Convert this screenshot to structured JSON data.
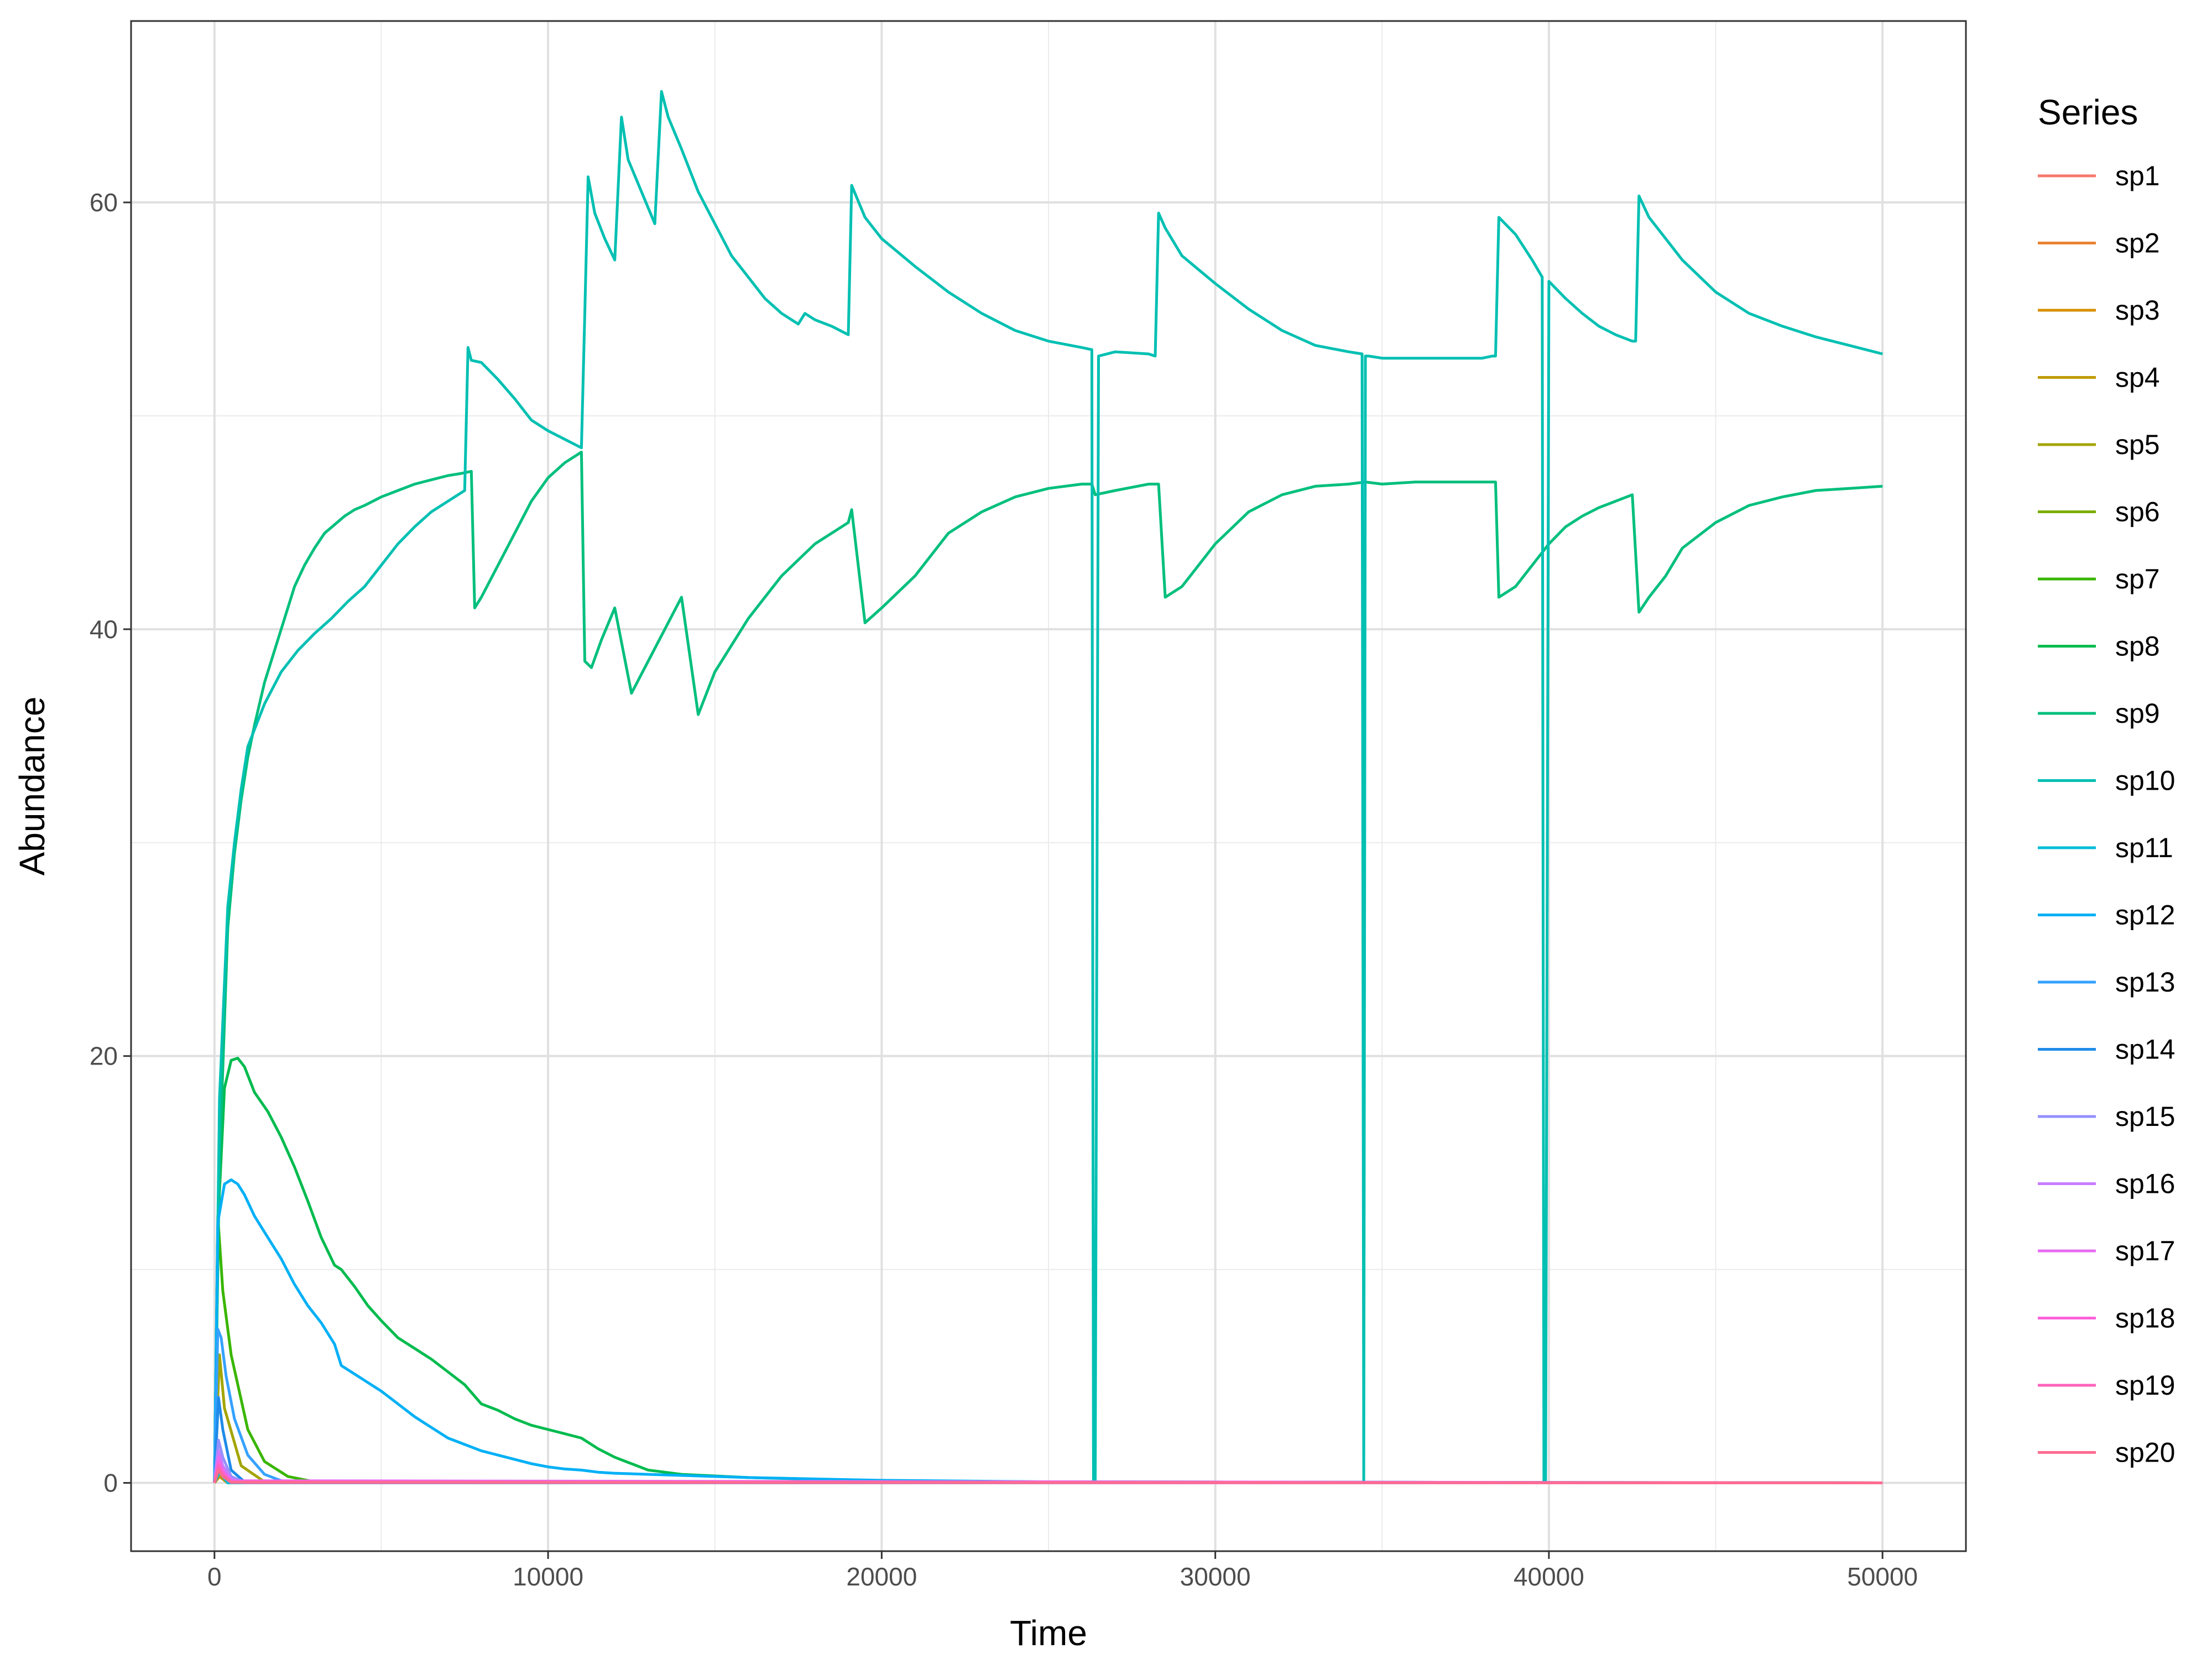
{
  "chart_data": {
    "type": "line",
    "xlabel": "Time",
    "ylabel": "Abundance",
    "xlim": [
      -2500,
      52500
    ],
    "ylim": [
      -3.2,
      68.5
    ],
    "x_ticks": [
      0,
      10000,
      20000,
      30000,
      40000,
      50000
    ],
    "x_tick_labels": [
      "0",
      "10000",
      "20000",
      "30000",
      "40000",
      "50000"
    ],
    "y_ticks": [
      0,
      20,
      40,
      60
    ],
    "y_tick_labels": [
      "0",
      "20",
      "40",
      "60"
    ],
    "grid": true,
    "legend": {
      "title": "Series",
      "position": "right"
    },
    "series": [
      {
        "name": "sp1",
        "color": "#F8766D",
        "x": [
          0,
          150,
          400,
          50000
        ],
        "y": [
          0,
          0.4,
          0,
          0
        ]
      },
      {
        "name": "sp2",
        "color": "#EA8331",
        "x": [
          0,
          150,
          400,
          50000
        ],
        "y": [
          0,
          0.3,
          0,
          0
        ]
      },
      {
        "name": "sp3",
        "color": "#D89000",
        "x": [
          0,
          150,
          400,
          50000
        ],
        "y": [
          0,
          0.3,
          0,
          0
        ]
      },
      {
        "name": "sp4",
        "color": "#C09B00",
        "x": [
          0,
          150,
          400,
          50000
        ],
        "y": [
          0,
          0.3,
          0,
          0
        ]
      },
      {
        "name": "sp5",
        "color": "#A3A500",
        "x": [
          0,
          150,
          300,
          800,
          1500,
          50000
        ],
        "y": [
          0,
          6,
          3.5,
          0.8,
          0.05,
          0
        ]
      },
      {
        "name": "sp6",
        "color": "#7CAE00",
        "x": [
          0,
          150,
          400,
          50000
        ],
        "y": [
          0,
          0.5,
          0,
          0
        ]
      },
      {
        "name": "sp7",
        "color": "#39B600",
        "x": [
          0,
          100,
          250,
          500,
          1000,
          1500,
          2200,
          3000,
          50000
        ],
        "y": [
          0,
          12.5,
          9,
          6,
          2.5,
          1,
          0.3,
          0.05,
          0
        ]
      },
      {
        "name": "sp8",
        "color": "#00BB4E",
        "x": [
          0,
          100,
          300,
          500,
          700,
          900,
          1200,
          1600,
          2000,
          2400,
          2800,
          3200,
          3600,
          3800,
          4200,
          4600,
          5000,
          5500,
          6000,
          6500,
          7000,
          7500,
          8000,
          8500,
          9000,
          9500,
          10000,
          10500,
          11000,
          11500,
          12000,
          12500,
          13000,
          14000,
          16000,
          20000,
          25000,
          50000
        ],
        "y": [
          0,
          12,
          18.5,
          19.8,
          19.9,
          19.5,
          18.3,
          17.4,
          16.2,
          14.8,
          13.2,
          11.5,
          10.2,
          10,
          9.2,
          8.3,
          7.6,
          6.8,
          6.3,
          5.8,
          5.2,
          4.6,
          3.7,
          3.4,
          3.0,
          2.7,
          2.5,
          2.3,
          2.1,
          1.6,
          1.2,
          0.9,
          0.6,
          0.4,
          0.25,
          0.1,
          0.05,
          0
        ]
      },
      {
        "name": "sp9",
        "color": "#00BF7D",
        "x": [
          0,
          150,
          400,
          600,
          800,
          1000,
          1200,
          1500,
          1800,
          2100,
          2400,
          2700,
          3000,
          3300,
          3600,
          3900,
          4200,
          4500,
          5000,
          5500,
          6000,
          6500,
          7000,
          7400,
          7700,
          7800,
          8000,
          8500,
          9000,
          9500,
          10000,
          10500,
          11000,
          11100,
          11300,
          11600,
          12000,
          12500,
          13000,
          13500,
          14000,
          14500,
          15000,
          16000,
          17000,
          18000,
          19000,
          19100,
          19500,
          20000,
          21000,
          22000,
          23000,
          24000,
          25000,
          26000,
          26300,
          26400,
          27000,
          28000,
          28300,
          28500,
          29000,
          30000,
          31000,
          32000,
          33000,
          34000,
          34500,
          35000,
          36000,
          37000,
          38000,
          38400,
          38500,
          39000,
          39500,
          40000,
          40500,
          41000,
          41500,
          42000,
          42500,
          42700,
          43000,
          43500,
          44000,
          45000,
          46000,
          47000,
          48000,
          49000,
          50000
        ],
        "y": [
          0,
          15,
          26,
          29.5,
          32,
          34,
          35.5,
          37.5,
          39,
          40.5,
          42,
          43,
          43.8,
          44.5,
          44.9,
          45.3,
          45.6,
          45.8,
          46.2,
          46.5,
          46.8,
          47.0,
          47.2,
          47.3,
          47.4,
          41.0,
          41.5,
          43,
          44.5,
          46,
          47.1,
          47.8,
          48.3,
          38.5,
          38.2,
          39.5,
          41,
          37,
          38.5,
          40,
          41.5,
          36,
          38,
          40.5,
          42.5,
          44,
          45,
          45.6,
          40.3,
          41,
          42.5,
          44.5,
          45.5,
          46.2,
          46.6,
          46.8,
          46.8,
          46.3,
          46.5,
          46.8,
          46.8,
          41.5,
          42,
          44,
          45.5,
          46.3,
          46.7,
          46.8,
          46.9,
          46.8,
          46.9,
          46.9,
          46.9,
          46.9,
          41.5,
          42,
          43,
          44,
          44.8,
          45.3,
          45.7,
          46,
          46.3,
          40.8,
          41.5,
          42.5,
          43.8,
          45,
          45.8,
          46.2,
          46.5,
          46.6,
          46.7
        ]
      },
      {
        "name": "sp10",
        "color": "#00C0B2",
        "x": [
          0,
          150,
          400,
          600,
          800,
          1000,
          1500,
          2000,
          2500,
          3000,
          3500,
          4000,
          4500,
          5000,
          5500,
          6000,
          6500,
          7000,
          7500,
          7600,
          7700,
          8000,
          8500,
          9000,
          9500,
          10000,
          10500,
          11000,
          11100,
          11200,
          11400,
          11700,
          12000,
          12200,
          12400,
          12800,
          13200,
          13400,
          13600,
          14000,
          14500,
          15000,
          15500,
          16000,
          16500,
          17000,
          17500,
          17700,
          18000,
          18500,
          19000,
          19100,
          19500,
          20000,
          21000,
          22000,
          23000,
          24000,
          25000,
          26000,
          26300,
          26350,
          26400,
          26500,
          27000,
          28000,
          28200,
          28300,
          28500,
          29000,
          30000,
          31000,
          32000,
          33000,
          34000,
          34400,
          34450,
          34500,
          34600,
          35000,
          36000,
          37000,
          38000,
          38300,
          38400,
          38500,
          39000,
          39500,
          39800,
          39850,
          39900,
          40000,
          40500,
          41000,
          41500,
          42000,
          42500,
          42600,
          42700,
          43000,
          43500,
          44000,
          45000,
          46000,
          47000,
          48000,
          49000,
          50000
        ],
        "y": [
          0,
          18,
          27,
          30,
          32.5,
          34.5,
          36.5,
          38,
          39,
          39.8,
          40.5,
          41.3,
          42,
          43,
          44,
          44.8,
          45.5,
          46,
          46.5,
          53.2,
          52.6,
          52.5,
          51.7,
          50.8,
          49.8,
          49.3,
          48.9,
          48.5,
          54.8,
          61.2,
          59.5,
          58.3,
          57.3,
          64.0,
          62,
          60.5,
          59,
          65.2,
          64,
          62.5,
          60.5,
          59,
          57.5,
          56.5,
          55.5,
          54.8,
          54.3,
          54.8,
          54.5,
          54.2,
          53.8,
          60.8,
          59.3,
          58.3,
          57,
          55.8,
          54.8,
          54,
          53.5,
          53.2,
          53.1,
          0,
          0,
          52.8,
          53,
          52.9,
          52.8,
          59.5,
          58.8,
          57.5,
          56.2,
          55,
          54,
          53.3,
          53,
          52.9,
          0,
          52.8,
          52.8,
          52.7,
          52.7,
          52.7,
          52.7,
          52.8,
          52.8,
          59.3,
          58.5,
          57.3,
          56.5,
          0,
          0,
          56.3,
          55.5,
          54.8,
          54.2,
          53.8,
          53.5,
          53.5,
          60.3,
          59.3,
          58.3,
          57.3,
          55.8,
          54.8,
          54.2,
          53.7,
          53.3,
          52.9
        ]
      },
      {
        "name": "sp11",
        "color": "#00BCD8",
        "x": [
          0,
          150,
          400,
          50000
        ],
        "y": [
          0,
          0.5,
          0,
          0
        ]
      },
      {
        "name": "sp12",
        "color": "#00B0F6",
        "x": [
          0,
          100,
          300,
          500,
          700,
          900,
          1200,
          1600,
          2000,
          2400,
          2800,
          3200,
          3600,
          3800,
          4000,
          4500,
          5000,
          5500,
          6000,
          6500,
          7000,
          7500,
          8000,
          8500,
          9000,
          9500,
          10000,
          10500,
          11000,
          11500,
          12000,
          13000,
          14000,
          16000,
          20000,
          25000,
          50000
        ],
        "y": [
          0,
          12.2,
          14,
          14.2,
          14,
          13.5,
          12.5,
          11.5,
          10.5,
          9.3,
          8.3,
          7.5,
          6.5,
          5.5,
          5.3,
          4.8,
          4.3,
          3.7,
          3.1,
          2.6,
          2.1,
          1.8,
          1.5,
          1.3,
          1.1,
          0.9,
          0.75,
          0.65,
          0.6,
          0.5,
          0.45,
          0.4,
          0.35,
          0.25,
          0.12,
          0.05,
          0
        ]
      },
      {
        "name": "sp13",
        "color": "#35A2FF",
        "x": [
          0,
          100,
          200,
          350,
          600,
          1000,
          1500,
          2000,
          2500,
          50000
        ],
        "y": [
          0,
          7.2,
          6.8,
          5,
          3,
          1.3,
          0.4,
          0.1,
          0.02,
          0
        ]
      },
      {
        "name": "sp14",
        "color": "#1F8BE8",
        "x": [
          0,
          120,
          250,
          500,
          900,
          50000
        ],
        "y": [
          0,
          4,
          2.5,
          0.6,
          0.05,
          0
        ]
      },
      {
        "name": "sp15",
        "color": "#9590FF",
        "x": [
          0,
          120,
          250,
          500,
          900,
          50000
        ],
        "y": [
          0,
          2,
          1.2,
          0.3,
          0.02,
          0
        ]
      },
      {
        "name": "sp16",
        "color": "#C77CFF",
        "x": [
          0,
          120,
          250,
          500,
          900,
          50000
        ],
        "y": [
          0,
          1.5,
          0.8,
          0.2,
          0.01,
          0
        ]
      },
      {
        "name": "sp17",
        "color": "#E76BF3",
        "x": [
          0,
          120,
          250,
          500,
          50000
        ],
        "y": [
          0,
          1.2,
          0.6,
          0.1,
          0
        ]
      },
      {
        "name": "sp18",
        "color": "#FA62DB",
        "x": [
          0,
          120,
          250,
          500,
          50000
        ],
        "y": [
          0,
          1.0,
          0.5,
          0.05,
          0
        ]
      },
      {
        "name": "sp19",
        "color": "#FF62BC",
        "x": [
          0,
          120,
          250,
          500,
          50000
        ],
        "y": [
          0,
          0.8,
          0.4,
          0.05,
          0
        ]
      },
      {
        "name": "sp20",
        "color": "#FF6C91",
        "x": [
          0,
          120,
          250,
          500,
          50000
        ],
        "y": [
          0,
          0.6,
          0.3,
          0.02,
          0
        ]
      }
    ]
  }
}
